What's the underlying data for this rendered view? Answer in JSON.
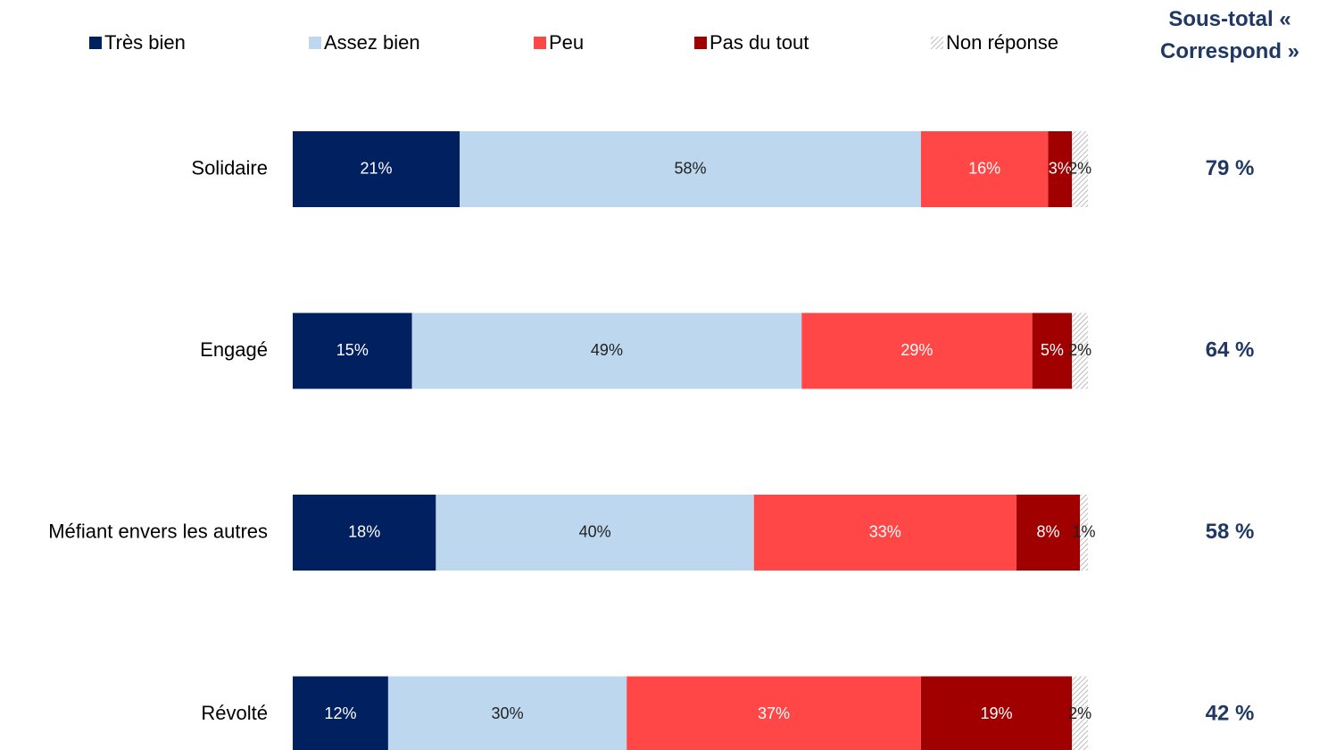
{
  "chart_data": {
    "type": "stacked-bar-horizontal",
    "categories": [
      "Solidaire",
      "Engagé",
      "Méfiant envers les autres",
      "Révolté"
    ],
    "xlim": [
      0,
      100
    ],
    "series": [
      {
        "name": "Très bien",
        "color": "#002060",
        "values": [
          21,
          15,
          18,
          12
        ],
        "value_labels": [
          "21%",
          "15%",
          "18%",
          "12%"
        ]
      },
      {
        "name": "Assez bien",
        "color": "#bdd7ee",
        "values": [
          58,
          49,
          40,
          30
        ],
        "value_labels": [
          "58%",
          "49%",
          "40%",
          "30%"
        ]
      },
      {
        "name": "Peu",
        "color": "#ff4747",
        "values": [
          16,
          29,
          33,
          37
        ],
        "value_labels": [
          "16%",
          "29%",
          "33%",
          "37%"
        ]
      },
      {
        "name": "Pas du tout",
        "color": "#a00000",
        "values": [
          3,
          5,
          8,
          19
        ],
        "value_labels": [
          "3%",
          "5%",
          "8%",
          "19%"
        ]
      },
      {
        "name": "Non réponse",
        "color": "hatch",
        "values": [
          2,
          2,
          1,
          2
        ],
        "value_labels": [
          "2%",
          "2%",
          "1%",
          "2%"
        ]
      }
    ],
    "subtotal": {
      "title": "Sous-total « Correspond »",
      "values": [
        79,
        64,
        58,
        42
      ],
      "value_labels": [
        "79 %",
        "64 %",
        "58 %",
        "42 %"
      ]
    }
  }
}
